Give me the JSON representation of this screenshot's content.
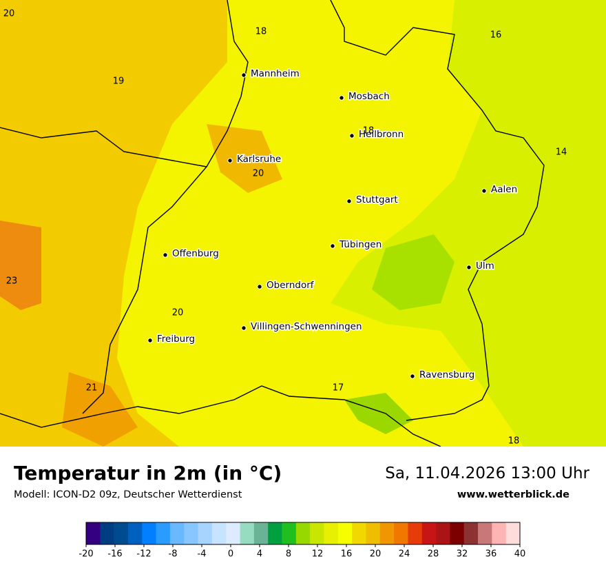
{
  "header": {
    "title": "Temperatur in 2m (in °C)",
    "subtitle": "Modell: ICON-D2 09z, Deutscher Wetterdienst",
    "date": "Sa, 11.04.2026 13:00 Uhr",
    "website": "www.wetterblick.de"
  },
  "cities": [
    "Mannheim",
    "Mosbach",
    "Heilbronn",
    "Karlsruhe",
    "Stuttgart",
    "Aalen",
    "Tübingen",
    "Ulm",
    "Offenburg",
    "Oberndorf",
    "Villingen-Schwenningen",
    "Freiburg",
    "Ravensburg"
  ],
  "temperature_labels": [
    20,
    18,
    16,
    19,
    18,
    14,
    20,
    23,
    20,
    21,
    17,
    18
  ],
  "legend": {
    "ticks": [
      -20,
      -16,
      -12,
      -8,
      -4,
      0,
      4,
      8,
      12,
      16,
      20,
      24,
      28,
      32,
      36,
      40
    ],
    "colors": [
      "#35007f",
      "#003c82",
      "#004a90",
      "#0060bf",
      "#0080ff",
      "#2a9bff",
      "#6ab8ff",
      "#87c6ff",
      "#a6d4ff",
      "#c6e3ff",
      "#dcebff",
      "#96dcc0",
      "#6ab394",
      "#00a040",
      "#1fbf1f",
      "#96d800",
      "#c8e600",
      "#e6f000",
      "#f5ff00",
      "#f0d800",
      "#f0be00",
      "#f09600",
      "#f07800",
      "#e63c0a",
      "#c81414",
      "#aa1414",
      "#7d0000",
      "#8c3232",
      "#c87878",
      "#ffb4b4",
      "#ffdcdc"
    ]
  }
}
